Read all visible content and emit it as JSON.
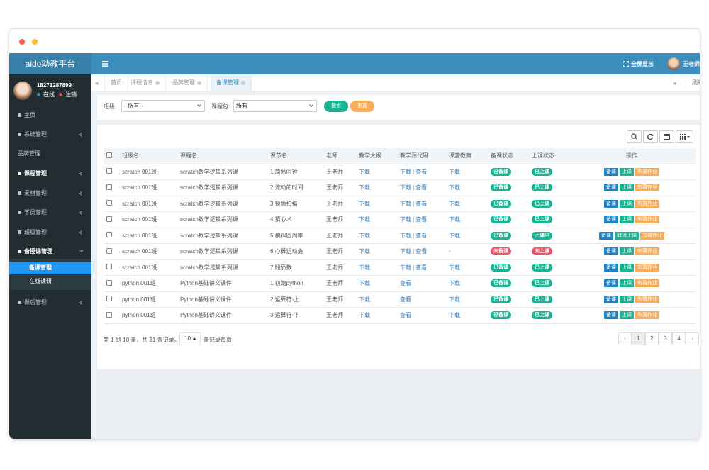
{
  "header": {
    "brand": "aido助教平台",
    "fullscreen": "全屏显示",
    "user": "王老师"
  },
  "sidebar": {
    "phone": "18271287899",
    "online": "在线",
    "logout": "注销",
    "menu": [
      {
        "label": "主页"
      },
      {
        "label": "系统管理"
      },
      {
        "label": "品牌管理"
      },
      {
        "label": "课程管理"
      },
      {
        "label": "素材管理"
      },
      {
        "label": "学员管理"
      },
      {
        "label": "班级管理"
      },
      {
        "label": "备授课管理",
        "children": [
          "备课管理",
          "在线课研"
        ]
      },
      {
        "label": "课后管理"
      }
    ]
  },
  "tabs": {
    "items": [
      "首页",
      "课程信息",
      "品牌管理",
      "备课管理"
    ],
    "refresh": "刷新"
  },
  "filter": {
    "class_label": "班级:",
    "class_value": "--所有--",
    "package_label": "课程包:",
    "package_value": "所有",
    "search": "搜索",
    "reset": "重置"
  },
  "table": {
    "headers": [
      "班级名",
      "课程名",
      "课节名",
      "老师",
      "教学大纲",
      "教学源代码",
      "课堂教案",
      "备课状态",
      "上课状态",
      "操作"
    ],
    "code_separator": "|",
    "rows": [
      {
        "class": "scratch 001班",
        "course": "scratch数学逻辑系列课",
        "lesson": "1.简易闹钟",
        "teacher": "王老师",
        "outline": "下载",
        "code": [
          "下载",
          "查看"
        ],
        "plan": "下载",
        "prep": {
          "label": "已备课",
          "color": "#1ab394"
        },
        "status": {
          "label": "已上课",
          "color": "#1ab394"
        },
        "actions": [
          {
            "label": "备课",
            "color": "#1c84c6"
          },
          {
            "label": "上课",
            "color": "#1ab394"
          },
          {
            "label": "布置作业",
            "color": "#f8ac59"
          }
        ]
      },
      {
        "class": "scratch 001班",
        "course": "scratch数学逻辑系列课",
        "lesson": "2.流动的时间",
        "teacher": "王老师",
        "outline": "下载",
        "code": [
          "下载",
          "查看"
        ],
        "plan": "下载",
        "prep": {
          "label": "已备课",
          "color": "#1ab394"
        },
        "status": {
          "label": "已上课",
          "color": "#1ab394"
        },
        "actions": [
          {
            "label": "备课",
            "color": "#1c84c6"
          },
          {
            "label": "上课",
            "color": "#1ab394"
          },
          {
            "label": "布置作业",
            "color": "#f8ac59"
          }
        ]
      },
      {
        "class": "scratch 001班",
        "course": "scratch数学逻辑系列课",
        "lesson": "3.镜像扫描",
        "teacher": "王老师",
        "outline": "下载",
        "code": [
          "下载",
          "查看"
        ],
        "plan": "下载",
        "prep": {
          "label": "已备课",
          "color": "#1ab394"
        },
        "status": {
          "label": "已上课",
          "color": "#1ab394"
        },
        "actions": [
          {
            "label": "备课",
            "color": "#1c84c6"
          },
          {
            "label": "上课",
            "color": "#1ab394"
          },
          {
            "label": "布置作业",
            "color": "#f8ac59"
          }
        ]
      },
      {
        "class": "scratch 001班",
        "course": "scratch数学逻辑系列课",
        "lesson": "4.猜心术",
        "teacher": "王老师",
        "outline": "下载",
        "code": [
          "下载",
          "查看"
        ],
        "plan": "下载",
        "prep": {
          "label": "已备课",
          "color": "#1ab394"
        },
        "status": {
          "label": "已上课",
          "color": "#1ab394"
        },
        "actions": [
          {
            "label": "备课",
            "color": "#1c84c6"
          },
          {
            "label": "上课",
            "color": "#1ab394"
          },
          {
            "label": "布置作业",
            "color": "#f8ac59"
          }
        ]
      },
      {
        "class": "scratch 001班",
        "course": "scratch数学逻辑系列课",
        "lesson": "5.模拟圆周率",
        "teacher": "王老师",
        "outline": "下载",
        "code": [
          "下载",
          "查看"
        ],
        "plan": "下载",
        "prep": {
          "label": "已备课",
          "color": "#1ab394"
        },
        "status": {
          "label": "上课中",
          "color": "#1ab394"
        },
        "actions": [
          {
            "label": "备课",
            "color": "#1c84c6"
          },
          {
            "label": "取消上课",
            "color": "#1ab394"
          },
          {
            "label": "布置作业",
            "color": "#f8ac59"
          }
        ]
      },
      {
        "class": "scratch 001班",
        "course": "scratch数学逻辑系列课",
        "lesson": "6.心算运动会",
        "teacher": "王老师",
        "outline": "下载",
        "code": [
          "下载",
          "查看"
        ],
        "plan": "-",
        "prep": {
          "label": "未备课",
          "color": "#ed5565"
        },
        "status": {
          "label": "未上课",
          "color": "#ed5565"
        },
        "actions": [
          {
            "label": "备课",
            "color": "#1c84c6"
          },
          {
            "label": "上课",
            "color": "#1ab394"
          },
          {
            "label": "布置作业",
            "color": "#f8ac59"
          }
        ]
      },
      {
        "class": "scratch 001班",
        "course": "scratch数学逻辑系列课",
        "lesson": "7.骰质数",
        "teacher": "王老师",
        "outline": "下载",
        "code": [
          "下载",
          "查看"
        ],
        "plan": "下载",
        "prep": {
          "label": "已备课",
          "color": "#1ab394"
        },
        "status": {
          "label": "已上课",
          "color": "#1ab394"
        },
        "actions": [
          {
            "label": "备课",
            "color": "#1c84c6"
          },
          {
            "label": "上课",
            "color": "#1ab394"
          },
          {
            "label": "布置作业",
            "color": "#f8ac59"
          }
        ]
      },
      {
        "class": "python 001班",
        "course": "Python基础讲义课件",
        "lesson": "1.初始python",
        "teacher": "王老师",
        "outline": "下载",
        "code": [
          "查看"
        ],
        "plan": "下载",
        "prep": {
          "label": "已备课",
          "color": "#1ab394"
        },
        "status": {
          "label": "已上课",
          "color": "#1ab394"
        },
        "actions": [
          {
            "label": "备课",
            "color": "#1c84c6"
          },
          {
            "label": "上课",
            "color": "#1ab394"
          },
          {
            "label": "布置作业",
            "color": "#f8ac59"
          }
        ]
      },
      {
        "class": "python 001班",
        "course": "Python基础讲义课件",
        "lesson": "2.运算符-上",
        "teacher": "王老师",
        "outline": "下载",
        "code": [
          "查看"
        ],
        "plan": "下载",
        "prep": {
          "label": "已备课",
          "color": "#1ab394"
        },
        "status": {
          "label": "已上课",
          "color": "#1ab394"
        },
        "actions": [
          {
            "label": "备课",
            "color": "#1c84c6"
          },
          {
            "label": "上课",
            "color": "#1ab394"
          },
          {
            "label": "布置作业",
            "color": "#f8ac59"
          }
        ]
      },
      {
        "class": "python 001班",
        "course": "Python基础讲义课件",
        "lesson": "3.运算符-下",
        "teacher": "王老师",
        "outline": "下载",
        "code": [
          "查看"
        ],
        "plan": "下载",
        "prep": {
          "label": "已备课",
          "color": "#1ab394"
        },
        "status": {
          "label": "已上课",
          "color": "#1ab394"
        },
        "actions": [
          {
            "label": "备课",
            "color": "#1c84c6"
          },
          {
            "label": "上课",
            "color": "#1ab394"
          },
          {
            "label": "布置作业",
            "color": "#f8ac59"
          }
        ]
      }
    ]
  },
  "pagination": {
    "summary": "第 1 到 10 条，共 31 条记录。",
    "page_size": "10",
    "per_page": "条记录每页",
    "pages": [
      "‹",
      "1",
      "2",
      "3",
      "4",
      "›"
    ]
  }
}
